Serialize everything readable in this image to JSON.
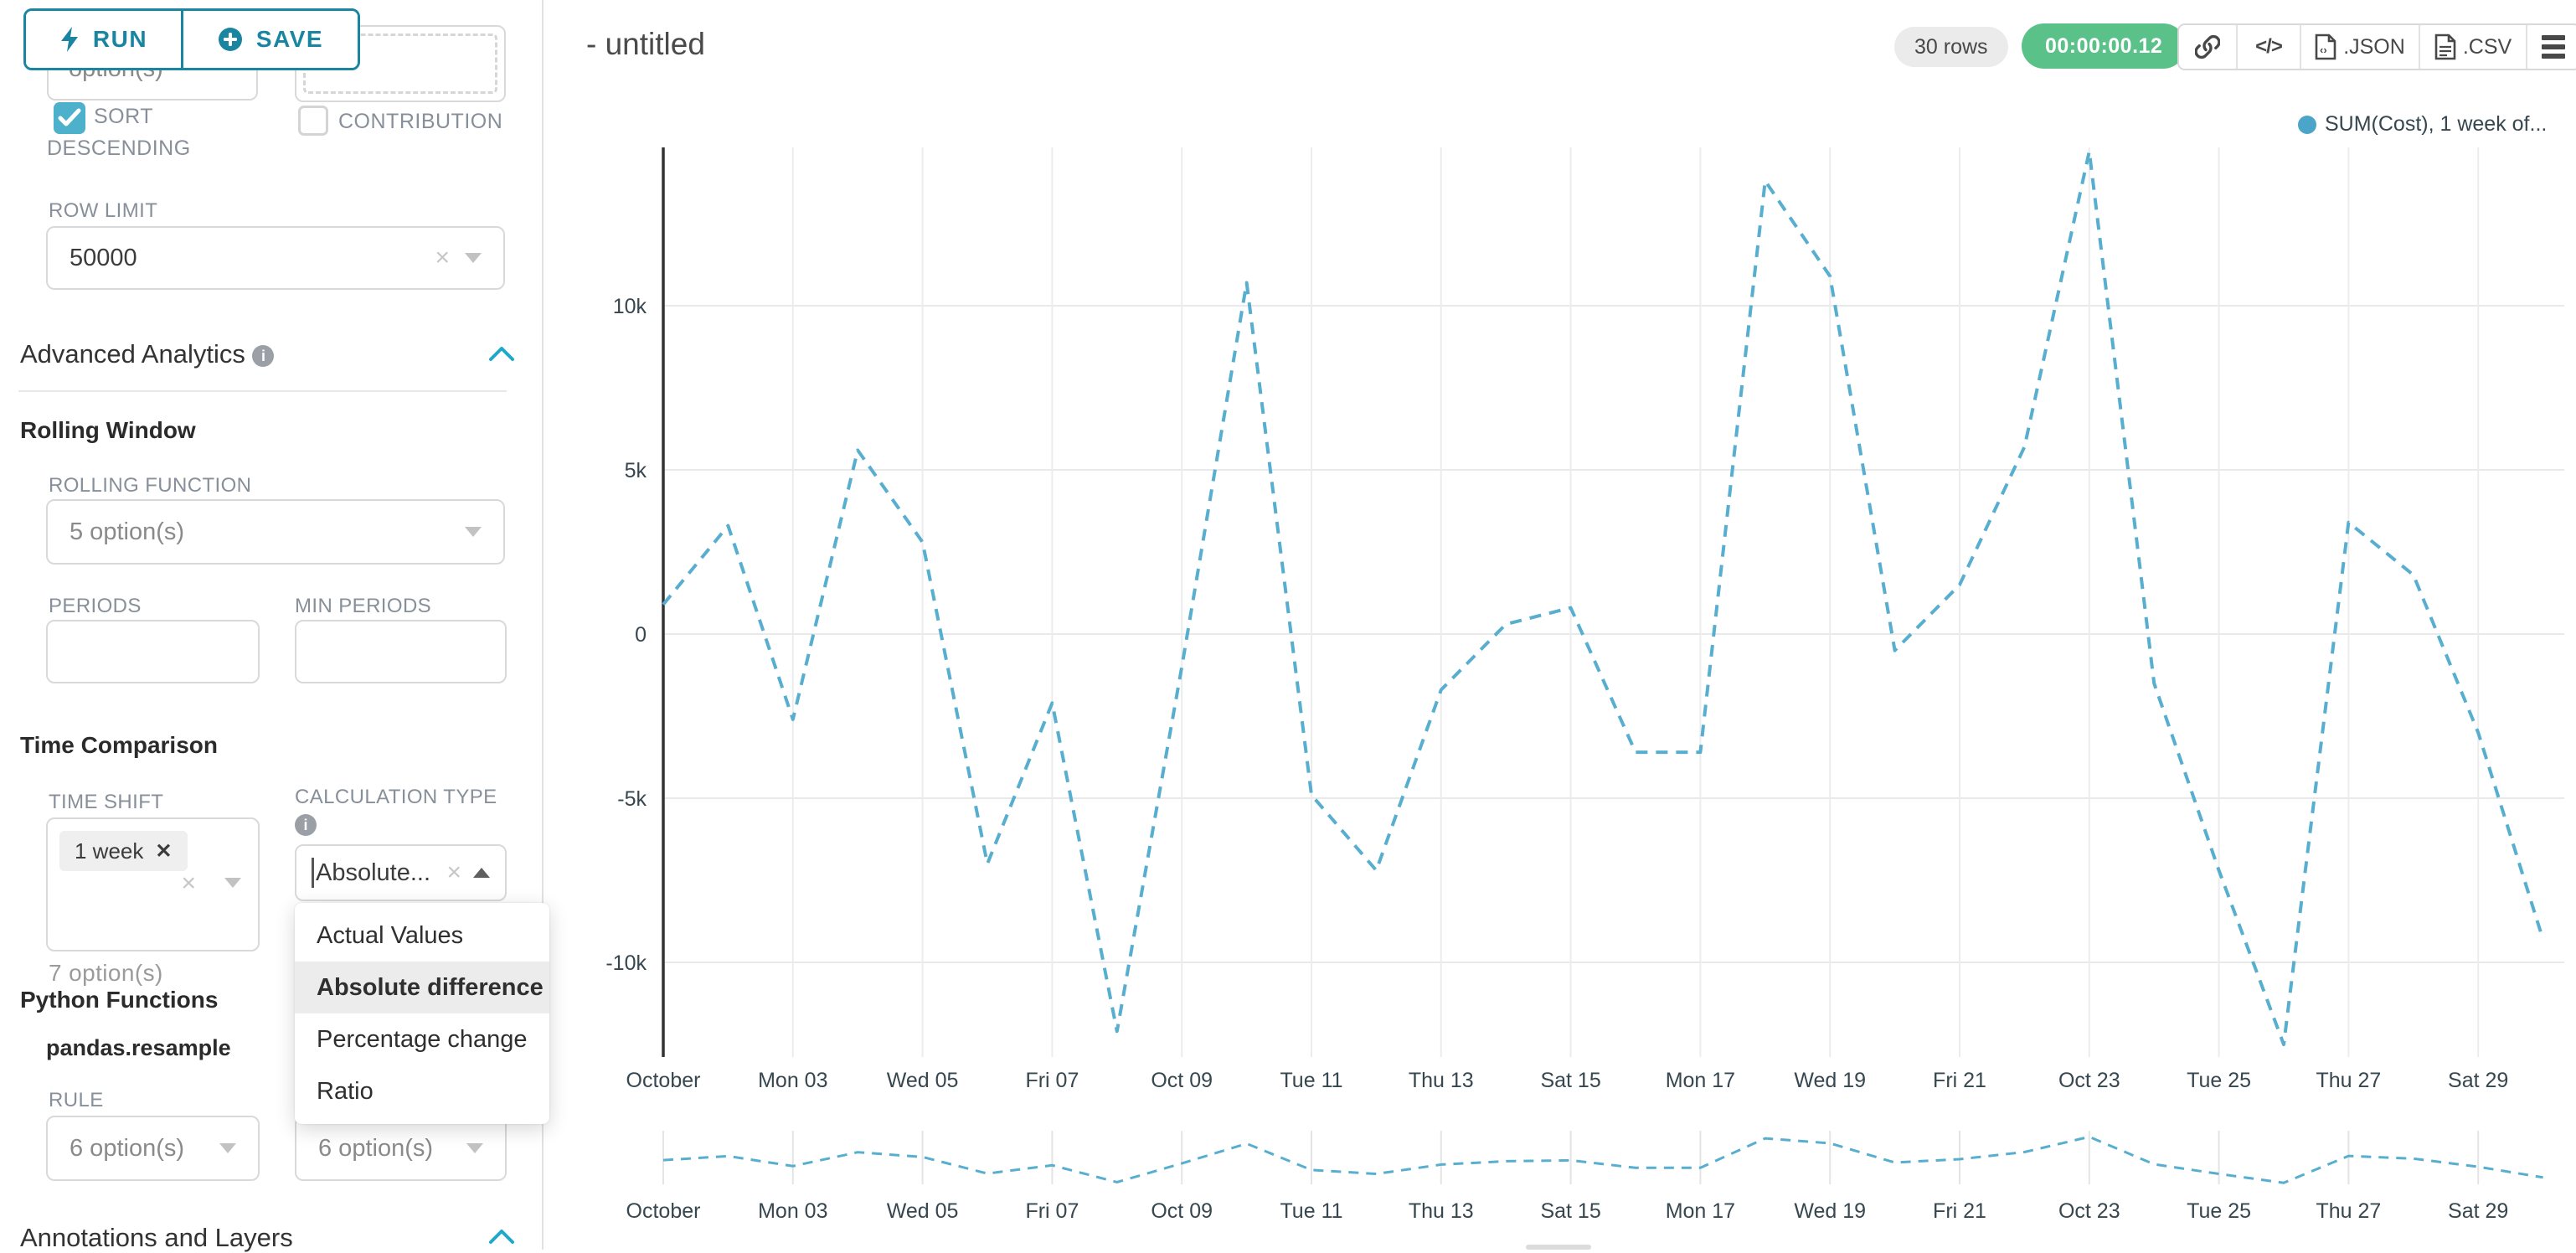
{
  "toolbar": {
    "run_label": "RUN",
    "save_label": "SAVE"
  },
  "sidebar": {
    "top": {
      "partial_text": "option(s)"
    },
    "checkboxes": [
      {
        "label": "SORT DESCENDING",
        "checked": true
      },
      {
        "label": "CONTRIBUTION",
        "checked": false
      }
    ],
    "row_limit": {
      "label": "ROW LIMIT",
      "value": "50000"
    },
    "advanced_analytics": {
      "title": "Advanced Analytics"
    },
    "rolling_window": {
      "title": "Rolling Window",
      "rolling_function_label": "ROLLING FUNCTION",
      "rolling_function_placeholder": "5 option(s)",
      "periods_label": "PERIODS",
      "min_periods_label": "MIN PERIODS"
    },
    "time_comparison": {
      "title": "Time Comparison",
      "time_shift_label": "TIME SHIFT",
      "time_shift_tag": "1 week",
      "time_shift_placeholder": "7 option(s)",
      "calculation_type_label": "CALCULATION TYPE",
      "calculation_type_value": "Absolute..."
    },
    "calc_dropdown": {
      "options": [
        {
          "label": "Actual Values",
          "selected": false
        },
        {
          "label": "Absolute difference",
          "selected": true
        },
        {
          "label": "Percentage change",
          "selected": false
        },
        {
          "label": "Ratio",
          "selected": false
        }
      ]
    },
    "python_functions": {
      "title": "Python Functions",
      "function_name": "pandas.resample",
      "rule_label": "RULE",
      "rule_placeholder_1": "6 option(s)",
      "rule_placeholder_2": "6 option(s)"
    },
    "annotations": {
      "title": "Annotations and Layers"
    }
  },
  "header": {
    "title": "- untitled",
    "rows_badge": "30 rows",
    "timer": "00:00:00.12",
    "json_label": ".JSON",
    "csv_label": ".CSV"
  },
  "legend": {
    "label": "SUM(Cost), 1 week of...",
    "color": "#4ba5c8"
  },
  "chart_data": {
    "type": "line",
    "title": "",
    "legend_position": "top-right",
    "grid": true,
    "series": [
      {
        "name": "SUM(Cost), 1 week of...",
        "color": "#57aecf",
        "line_style": "dashed",
        "x_day_of_october": [
          1,
          2,
          3,
          4,
          5,
          6,
          7,
          8,
          9,
          10,
          11,
          12,
          13,
          14,
          15,
          16,
          17,
          18,
          19,
          20,
          21,
          22,
          23,
          24,
          25,
          26,
          27,
          28,
          29,
          30
        ],
        "values": [
          900,
          3300,
          -2600,
          5600,
          2800,
          -7000,
          -2100,
          -12100,
          -1000,
          10700,
          -4900,
          -7200,
          -1700,
          300,
          800,
          -3600,
          -3600,
          13800,
          10900,
          -500,
          1500,
          5700,
          14700,
          -1500,
          -7200,
          -12500,
          3400,
          1800,
          -3000,
          -9300
        ]
      }
    ],
    "x_axis": {
      "tick_labels": [
        "October",
        "Mon 03",
        "Wed 05",
        "Fri 07",
        "Oct 09",
        "Tue 11",
        "Thu 13",
        "Sat 15",
        "Mon 17",
        "Wed 19",
        "Fri 21",
        "Oct 23",
        "Tue 25",
        "Thu 27",
        "Sat 29"
      ],
      "tick_days": [
        1,
        3,
        5,
        7,
        9,
        11,
        13,
        15,
        17,
        19,
        21,
        23,
        25,
        27,
        29
      ]
    },
    "y_axis": {
      "tick_labels": [
        "10k",
        "5k",
        "0",
        "-5k",
        "-10k"
      ],
      "tick_values": [
        10000,
        5000,
        0,
        -5000,
        -10000
      ]
    },
    "ylim": [
      -12900,
      14800
    ],
    "mini_map": true
  }
}
